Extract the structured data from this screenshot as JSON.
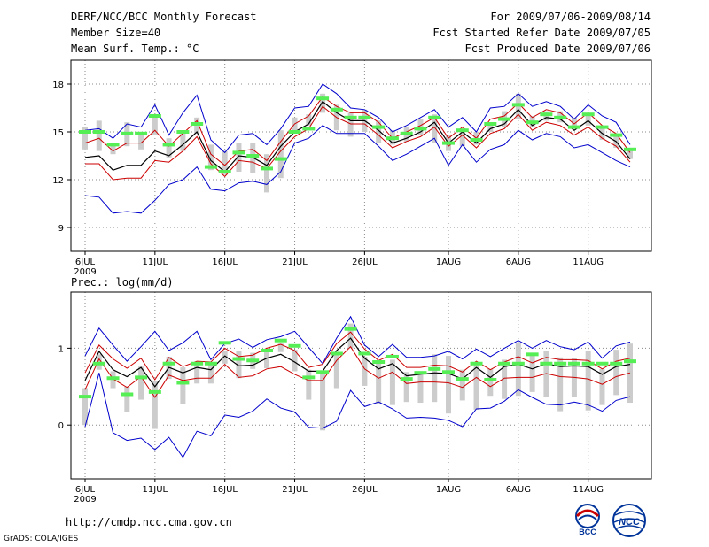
{
  "header": {
    "title": "DERF/NCC/BCC Monthly Forecast",
    "member": "Member Size=40",
    "variable": "Mean Surf. Temp.: °C",
    "period": "For 2009/07/06-2009/08/14",
    "started": "Fcst Started Refer Date 2009/07/05",
    "produced": "Fcst Produced Date 2009/07/06"
  },
  "footer": {
    "url": "http://cmdp.ncc.cma.gov.cn",
    "grads": "GrADS: COLA/IGES",
    "logo_bcc": "BCC",
    "logo_ncc": "NCC"
  },
  "colors": {
    "envelope": "#0000cc",
    "spread": "#cc0000",
    "mean": "#000000",
    "obs": "#55ee55",
    "bar": "#cccccc",
    "grid": "#888888"
  },
  "chart_data": [
    {
      "type": "line",
      "title": "Mean Surf. Temp.: °C",
      "ylim": [
        7.5,
        19.5
      ],
      "yticks": [
        9,
        12,
        15,
        18
      ],
      "x_tick_labels": [
        "6JUL",
        "11JUL",
        "16JUL",
        "21JUL",
        "26JUL",
        "1AUG",
        "6AUG",
        "11AUG"
      ],
      "x_tick_index": [
        0,
        5,
        10,
        15,
        20,
        26,
        31,
        36
      ],
      "year_label": "2009",
      "n_days": 40,
      "series": [
        {
          "name": "max",
          "values": [
            15.1,
            15.2,
            14.6,
            15.5,
            15.3,
            16.7,
            14.8,
            16.2,
            17.3,
            14.5,
            13.7,
            14.8,
            14.9,
            14.2,
            15.2,
            16.5,
            16.6,
            18.0,
            17.4,
            16.5,
            16.4,
            15.9,
            15.0,
            15.4,
            15.9,
            16.4,
            15.3,
            15.9,
            15.0,
            16.5,
            16.6,
            17.4,
            16.6,
            16.9,
            16.6,
            15.8,
            16.7,
            16.0,
            15.6,
            14.2
          ]
        },
        {
          "name": "upper",
          "values": [
            14.3,
            14.6,
            13.8,
            14.3,
            14.3,
            15.1,
            14.1,
            14.9,
            15.7,
            13.6,
            12.9,
            13.8,
            13.9,
            13.2,
            14.4,
            15.5,
            16.0,
            17.2,
            16.6,
            16.2,
            16.2,
            15.6,
            14.6,
            15.0,
            15.4,
            15.9,
            14.6,
            15.3,
            14.6,
            15.8,
            16.0,
            16.8,
            15.9,
            16.4,
            16.2,
            15.5,
            16.2,
            15.4,
            14.9,
            13.7
          ]
        },
        {
          "name": "mean",
          "values": [
            13.4,
            13.5,
            12.6,
            12.9,
            12.9,
            13.8,
            13.5,
            14.2,
            15.0,
            13.2,
            12.5,
            13.5,
            13.4,
            12.9,
            14.1,
            15.0,
            15.5,
            16.9,
            16.2,
            15.7,
            15.7,
            15.1,
            14.3,
            14.6,
            15.0,
            15.6,
            14.3,
            15.0,
            14.3,
            15.2,
            15.5,
            16.4,
            15.4,
            15.9,
            15.8,
            15.1,
            15.7,
            14.9,
            14.4,
            13.3
          ]
        },
        {
          "name": "lower",
          "values": [
            13.0,
            13.0,
            12.0,
            12.1,
            12.1,
            13.2,
            13.1,
            13.8,
            14.7,
            13.0,
            12.2,
            13.2,
            13.1,
            12.7,
            13.8,
            14.7,
            15.2,
            16.6,
            15.9,
            15.5,
            15.5,
            14.8,
            14.0,
            14.4,
            14.7,
            15.3,
            14.1,
            14.8,
            14.0,
            14.9,
            15.2,
            16.1,
            15.1,
            15.6,
            15.4,
            14.8,
            15.3,
            14.6,
            14.1,
            13.1
          ]
        },
        {
          "name": "min",
          "values": [
            11.0,
            10.9,
            9.9,
            10.0,
            9.9,
            10.7,
            11.7,
            12.0,
            12.8,
            11.4,
            11.3,
            11.8,
            11.9,
            11.7,
            12.5,
            14.3,
            14.6,
            15.4,
            14.9,
            14.9,
            14.9,
            14.1,
            13.2,
            13.6,
            14.1,
            14.6,
            12.9,
            14.2,
            13.1,
            13.9,
            14.2,
            15.1,
            14.5,
            14.9,
            14.7,
            14.0,
            14.2,
            13.7,
            13.2,
            12.8
          ]
        },
        {
          "name": "observed",
          "values": [
            15.0,
            15.0,
            14.2,
            14.9,
            14.9,
            16.0,
            14.2,
            15.0,
            15.5,
            12.8,
            12.5,
            13.7,
            13.5,
            12.7,
            13.3,
            15.0,
            15.2,
            17.1,
            16.4,
            15.9,
            15.9,
            15.3,
            14.6,
            14.9,
            15.2,
            15.9,
            14.3,
            15.1,
            14.5,
            15.5,
            15.8,
            16.7,
            15.6,
            16.1,
            15.9,
            15.3,
            16.1,
            15.3,
            14.8,
            13.9
          ]
        }
      ],
      "bars": [
        [
          13.9,
          15.3
        ],
        [
          13.8,
          15.7
        ],
        [
          13.6,
          14.3
        ],
        [
          14.1,
          15.6
        ],
        [
          13.9,
          15.0
        ],
        [
          14.8,
          16.1
        ],
        [
          13.4,
          14.6
        ],
        [
          13.8,
          15.0
        ],
        [
          14.9,
          15.9
        ],
        [
          12.6,
          14.2
        ],
        [
          12.3,
          13.8
        ],
        [
          12.5,
          14.3
        ],
        [
          12.4,
          14.3
        ],
        [
          11.2,
          13.6
        ],
        [
          12.1,
          15.1
        ],
        [
          15.0,
          15.9
        ],
        [
          15.4,
          16.1
        ],
        [
          16.2,
          17.4
        ],
        [
          15.1,
          16.7
        ],
        [
          14.7,
          16.2
        ],
        [
          15.0,
          16.4
        ],
        [
          14.3,
          15.7
        ],
        [
          14.2,
          15.1
        ],
        [
          14.4,
          15.3
        ],
        [
          14.8,
          15.8
        ],
        [
          14.3,
          16.1
        ],
        [
          13.8,
          14.8
        ],
        [
          14.1,
          15.2
        ],
        [
          14.2,
          15.0
        ],
        [
          15.0,
          15.6
        ],
        [
          15.3,
          16.3
        ],
        [
          15.8,
          17.4
        ],
        [
          15.3,
          16.0
        ],
        [
          15.7,
          16.3
        ],
        [
          15.6,
          16.3
        ],
        [
          15.2,
          15.9
        ],
        [
          15.4,
          16.0
        ],
        [
          14.5,
          15.4
        ],
        [
          14.0,
          14.9
        ],
        [
          13.3,
          14.0
        ]
      ]
    },
    {
      "type": "line",
      "title": "Prec.: log(mm/d)",
      "ylim": [
        -0.7,
        1.73
      ],
      "yticks": [
        0,
        1
      ],
      "x_tick_labels": [
        "6JUL",
        "11JUL",
        "16JUL",
        "21JUL",
        "26JUL",
        "1AUG",
        "6AUG",
        "11AUG"
      ],
      "x_tick_index": [
        0,
        5,
        10,
        15,
        20,
        26,
        31,
        36
      ],
      "year_label": "2009",
      "n_days": 40,
      "series": [
        {
          "name": "max",
          "values": [
            0.9,
            1.26,
            1.04,
            0.83,
            1.02,
            1.22,
            0.97,
            1.07,
            1.22,
            0.85,
            1.06,
            1.12,
            1.01,
            1.11,
            1.15,
            1.22,
            1.01,
            0.8,
            1.13,
            1.41,
            1.04,
            0.89,
            1.05,
            0.88,
            0.88,
            0.9,
            0.96,
            0.86,
            0.99,
            0.89,
            1.0,
            1.1,
            1.0,
            1.1,
            1.02,
            0.98,
            1.08,
            0.87,
            1.03,
            1.08
          ]
        },
        {
          "name": "upper",
          "values": [
            0.68,
            1.04,
            0.86,
            0.74,
            0.87,
            0.59,
            0.88,
            0.76,
            0.83,
            0.82,
            1.0,
            0.89,
            0.91,
            1.0,
            1.05,
            0.97,
            0.75,
            0.79,
            1.06,
            1.21,
            0.99,
            0.84,
            0.92,
            0.75,
            0.75,
            0.78,
            0.77,
            0.69,
            0.83,
            0.72,
            0.82,
            0.89,
            0.81,
            0.88,
            0.85,
            0.85,
            0.84,
            0.73,
            0.83,
            0.87
          ]
        },
        {
          "name": "mean",
          "values": [
            0.58,
            0.96,
            0.72,
            0.63,
            0.75,
            0.5,
            0.75,
            0.68,
            0.75,
            0.72,
            0.9,
            0.77,
            0.78,
            0.87,
            0.92,
            0.82,
            0.7,
            0.7,
            0.97,
            1.13,
            0.87,
            0.73,
            0.8,
            0.64,
            0.66,
            0.68,
            0.67,
            0.6,
            0.75,
            0.62,
            0.76,
            0.79,
            0.73,
            0.8,
            0.76,
            0.77,
            0.76,
            0.66,
            0.76,
            0.79
          ]
        },
        {
          "name": "lower",
          "values": [
            0.46,
            0.86,
            0.6,
            0.49,
            0.63,
            0.36,
            0.65,
            0.58,
            0.61,
            0.61,
            0.79,
            0.62,
            0.64,
            0.73,
            0.76,
            0.66,
            0.58,
            0.58,
            0.84,
            1.02,
            0.73,
            0.61,
            0.69,
            0.54,
            0.56,
            0.56,
            0.55,
            0.49,
            0.62,
            0.5,
            0.61,
            0.62,
            0.62,
            0.67,
            0.63,
            0.62,
            0.6,
            0.53,
            0.63,
            0.68
          ]
        },
        {
          "name": "min",
          "values": [
            -0.02,
            0.68,
            -0.1,
            -0.2,
            -0.17,
            -0.32,
            -0.16,
            -0.42,
            -0.08,
            -0.14,
            0.13,
            0.1,
            0.18,
            0.34,
            0.22,
            0.17,
            -0.03,
            -0.04,
            0.05,
            0.45,
            0.24,
            0.3,
            0.21,
            0.09,
            0.1,
            0.09,
            0.06,
            -0.02,
            0.21,
            0.22,
            0.31,
            0.46,
            0.36,
            0.27,
            0.26,
            0.3,
            0.26,
            0.18,
            0.32,
            0.37
          ]
        },
        {
          "name": "observed",
          "values": [
            0.37,
            0.8,
            0.61,
            0.4,
            0.62,
            0.43,
            0.8,
            0.55,
            0.8,
            0.8,
            1.07,
            0.86,
            0.84,
            0.97,
            1.1,
            1.03,
            0.62,
            0.69,
            0.93,
            1.25,
            0.93,
            0.82,
            0.89,
            0.6,
            0.68,
            0.73,
            0.69,
            0.6,
            0.8,
            0.59,
            0.8,
            0.8,
            0.92,
            0.8,
            0.8,
            0.8,
            0.8,
            0.8,
            0.8,
            0.83
          ]
        }
      ],
      "bars": [
        [
          0.0,
          0.48
        ],
        [
          0.72,
          0.92
        ],
        [
          0.48,
          0.7
        ],
        [
          0.17,
          0.5
        ],
        [
          0.33,
          0.76
        ],
        [
          -0.05,
          0.57
        ],
        [
          0.6,
          0.89
        ],
        [
          0.27,
          0.75
        ],
        [
          0.54,
          0.82
        ],
        [
          0.54,
          0.82
        ],
        [
          0.8,
          0.97
        ],
        [
          0.61,
          0.96
        ],
        [
          0.73,
          0.94
        ],
        [
          0.74,
          0.98
        ],
        [
          0.95,
          1.06
        ],
        [
          0.7,
          0.98
        ],
        [
          0.33,
          0.72
        ],
        [
          -0.07,
          0.66
        ],
        [
          0.48,
          0.95
        ],
        [
          1.0,
          1.32
        ],
        [
          0.51,
          0.89
        ],
        [
          0.28,
          0.83
        ],
        [
          0.26,
          0.85
        ],
        [
          0.3,
          0.69
        ],
        [
          0.29,
          0.65
        ],
        [
          0.3,
          0.92
        ],
        [
          0.15,
          0.9
        ],
        [
          0.32,
          0.72
        ],
        [
          0.2,
          0.82
        ],
        [
          0.38,
          0.73
        ],
        [
          0.34,
          0.85
        ],
        [
          0.38,
          1.07
        ],
        [
          0.43,
          0.92
        ],
        [
          0.37,
          0.96
        ],
        [
          0.18,
          0.88
        ],
        [
          0.37,
          0.87
        ],
        [
          0.19,
          0.96
        ],
        [
          0.26,
          0.73
        ],
        [
          0.39,
          0.98
        ],
        [
          0.29,
          1.06
        ]
      ]
    }
  ]
}
